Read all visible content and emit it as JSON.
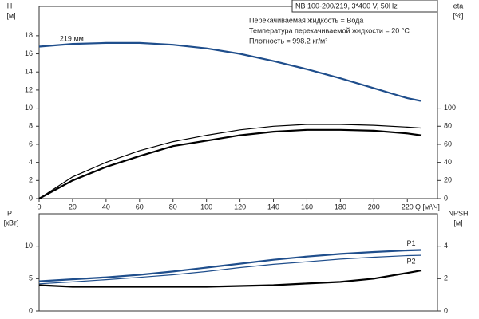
{
  "chart_data": [
    {
      "type": "line",
      "title": "NB 100-200/219, 3*400 V, 50Hz",
      "annotations": [
        "Перекачиваемая жидкость = Вода",
        "Температура перекачиваемой жидкости = 20 °C",
        "Плотность = 998.2 кг/м³"
      ],
      "ylabel": "H",
      "ylabel_unit": "[м]",
      "y2label": "eta",
      "y2label_unit": "[%]",
      "xlabel": "Q [м³/ч]",
      "x": [
        0,
        20,
        40,
        60,
        80,
        100,
        120,
        140,
        160,
        180,
        200,
        220,
        228
      ],
      "xlim": [
        0,
        238
      ],
      "xticks": [
        0,
        20,
        40,
        60,
        80,
        100,
        120,
        140,
        160,
        180,
        200,
        220
      ],
      "ylim": [
        0,
        21.25
      ],
      "yticks": [
        0,
        2,
        4,
        6,
        8,
        10,
        12,
        14,
        16,
        18
      ],
      "y2lim": [
        0,
        212.5
      ],
      "y2ticks": [
        0,
        20,
        40,
        60,
        80,
        100
      ],
      "series": [
        {
          "name": "219 мм",
          "color": "#1f4e8c",
          "values": [
            16.8,
            17.1,
            17.2,
            17.2,
            17.0,
            16.6,
            16.0,
            15.2,
            14.3,
            13.3,
            12.2,
            11.1,
            10.8
          ]
        },
        {
          "color": "#000000",
          "axis": "y2",
          "values": [
            0,
            24,
            40,
            53,
            63,
            70,
            76,
            80,
            82,
            82,
            81,
            79,
            78
          ]
        },
        {
          "color": "#000000",
          "axis": "y2",
          "values": [
            0,
            20,
            35,
            47,
            58,
            64,
            70,
            74,
            76,
            76,
            75,
            72,
            70
          ]
        }
      ]
    },
    {
      "type": "line",
      "ylabel": "P",
      "ylabel_unit": "[кВт]",
      "y2label": "NPSH",
      "y2label_unit": "[м]",
      "x": [
        0,
        20,
        40,
        60,
        80,
        100,
        120,
        140,
        160,
        180,
        200,
        220,
        228
      ],
      "xlim": [
        0,
        238
      ],
      "ylim": [
        0,
        15
      ],
      "yticks": [
        0,
        5,
        10
      ],
      "y2lim": [
        0,
        6
      ],
      "y2ticks": [
        0,
        2,
        4
      ],
      "series": [
        {
          "name": "P1",
          "color": "#1f4e8c",
          "values": [
            4.6,
            4.9,
            5.2,
            5.6,
            6.1,
            6.7,
            7.3,
            7.9,
            8.4,
            8.8,
            9.1,
            9.35,
            9.4
          ]
        },
        {
          "name": "P2",
          "color": "#1f4e8c",
          "values": [
            4.2,
            4.5,
            4.85,
            5.2,
            5.6,
            6.1,
            6.7,
            7.2,
            7.6,
            8.0,
            8.3,
            8.55,
            8.6
          ]
        },
        {
          "color": "#000000",
          "axis": "y2",
          "values": [
            1.6,
            1.5,
            1.5,
            1.5,
            1.5,
            1.5,
            1.55,
            1.6,
            1.7,
            1.8,
            2.0,
            2.35,
            2.5
          ]
        }
      ]
    }
  ]
}
